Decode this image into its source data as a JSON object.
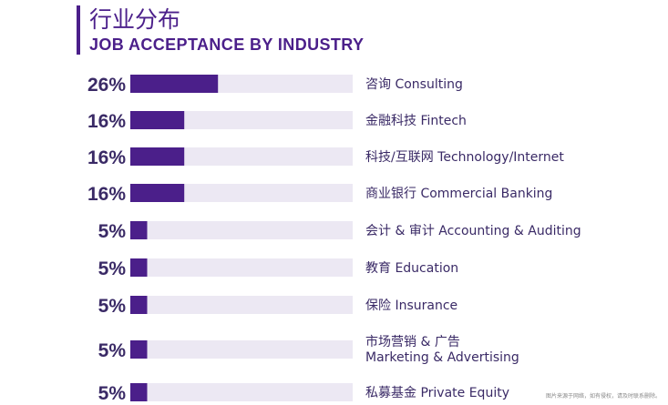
{
  "chart_data": {
    "type": "bar",
    "orientation": "horizontal",
    "title": "行业分布",
    "subtitle": "JOB ACCEPTANCE BY INDUSTRY",
    "xlim": [
      0,
      100
    ],
    "grid": false,
    "value_suffix": "%",
    "categories": [
      [
        "咨询 Consulting"
      ],
      [
        "金融科技 Fintech"
      ],
      [
        "科技/互联网 Technology/Internet"
      ],
      [
        "商业银行 Commercial Banking"
      ],
      [
        "会计 & 审计 Accounting & Auditing"
      ],
      [
        "教育 Education"
      ],
      [
        "保险 Insurance"
      ],
      [
        "市场营销 & 广告",
        "Marketing & Advertising"
      ],
      [
        "私募基金 Private Equity"
      ]
    ],
    "values": [
      26,
      16,
      16,
      16,
      5,
      5,
      5,
      5,
      5
    ],
    "colors": {
      "bar": "#4b1f8a",
      "track": "#ece8f3"
    }
  },
  "footnote": "图片来源于网络，如有侵权，请及时联系删除。"
}
